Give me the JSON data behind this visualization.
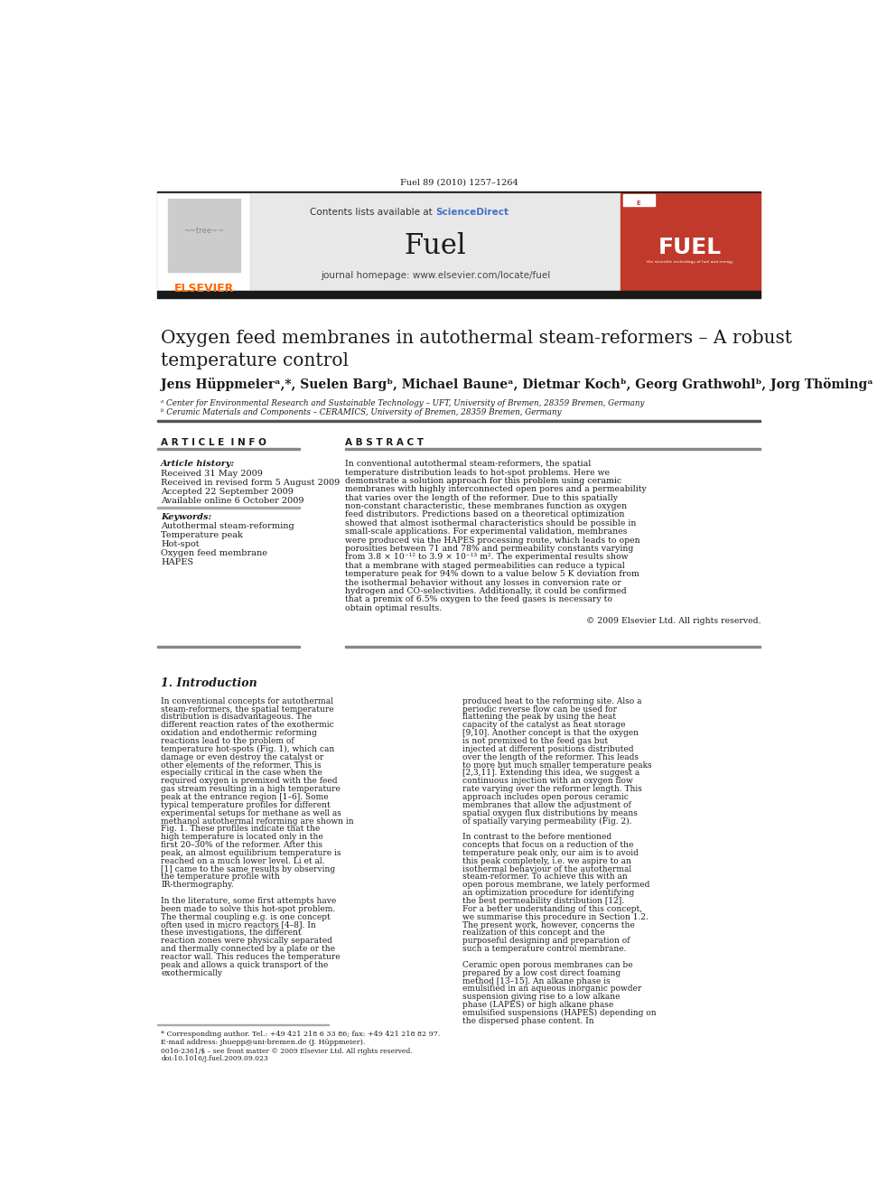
{
  "page_width": 9.92,
  "page_height": 13.23,
  "bg_color": "#ffffff",
  "journal_ref": "Fuel 89 (2010) 1257–1264",
  "header_bg": "#e8e8e8",
  "sciencedirect_color": "#4472c4",
  "journal_title": "Fuel",
  "journal_homepage": "journal homepage: www.elsevier.com/locate/fuel",
  "paper_title_line1": "Oxygen feed membranes in autothermal steam-reformers – A robust",
  "paper_title_line2": "temperature control",
  "authors": "Jens Hüppmeierᵃ,*, Suelen Bargᵇ, Michael Bauneᵃ, Dietmar Kochᵇ, Georg Grathwohlᵇ, Jorg Thömingᵃ",
  "affil_a": "ᵃ Center for Environmental Research and Sustainable Technology – UFT, University of Bremen, 28359 Bremen, Germany",
  "affil_b": "ᵇ Ceramic Materials and Components – CERAMICS, University of Bremen, 28359 Bremen, Germany",
  "article_info_title": "A R T I C L E  I N F O",
  "abstract_title": "A B S T R A C T",
  "article_history_label": "Article history:",
  "received": "Received 31 May 2009",
  "revised": "Received in revised form 5 August 2009",
  "accepted": "Accepted 22 September 2009",
  "available": "Available online 6 October 2009",
  "keywords_label": "Keywords:",
  "keywords": [
    "Autothermal steam-reforming",
    "Temperature peak",
    "Hot-spot",
    "Oxygen feed membrane",
    "HAPES"
  ],
  "abstract_text": "In conventional autothermal steam-reformers, the spatial temperature distribution leads to hot-spot problems. Here we demonstrate a solution approach for this problem using ceramic membranes with highly interconnected open pores and a permeability that varies over the length of the reformer. Due to this spatially non-constant characteristic, these membranes function as oxygen feed distributors. Predictions based on a theoretical optimization showed that almost isothermal characteristics should be possible in small-scale applications. For experimental validation, membranes were produced via the HAPES processing route, which leads to open porosities between 71 and 78% and permeability constants varying from 3.8 × 10⁻¹² to 3.9 × 10⁻¹³ m². The experimental results show that a membrane with staged permeabilities can reduce a typical temperature peak for 94% down to a value below 5 K deviation from the isothermal behavior without any losses in conversion rate or hydrogen and CO-selectivities. Additionally, it could be confirmed that a premix of 6.5% oxygen to the feed gases is necessary to obtain optimal results.",
  "copyright": "© 2009 Elsevier Ltd. All rights reserved.",
  "intro_title": "1. Introduction",
  "intro_col1": "In conventional concepts for autothermal steam-reformers, the spatial temperature distribution is disadvantageous. The different reaction rates of the exothermic oxidation and endothermic reforming reactions lead to the problem of temperature hot-spots (Fig. 1), which can damage or even destroy the catalyst or other elements of the reformer. This is especially critical in the case when the required oxygen is premixed with the feed gas stream resulting in a high temperature peak at the entrance region [1–6]. Some typical temperature profiles for different experimental setups for methane as well as methanol autothermal reforming are shown in Fig. 1. These profiles indicate that the high temperature is located only in the first 20–30% of the reformer. After this peak, an almost equilibrium temperature is reached on a much lower level. Li et al. [1] came to the same results by observing the temperature profile with IR-thermography.\n    In the literature, some first attempts have been made to solve this hot-spot problem. The thermal coupling e.g. is one concept often used in micro reactors [4–8]. In these investigations, the different reaction zones were physically separated and thermally connected by a plate or the reactor wall. This reduces the temperature peak and allows a quick transport of the exothermically",
  "intro_col2": "produced heat to the reforming site. Also a periodic reverse flow can be used for flattening the peak by using the heat capacity of the catalyst as heat storage [9,10]. Another concept is that the oxygen is not premixed to the feed gas but injected at different positions distributed over the length of the reformer. This leads to more but much smaller temperature peaks [2,3,11]. Extending this idea, we suggest a continuous injection with an oxygen flow rate varying over the reformer length. This approach includes open porous ceramic membranes that allow the adjustment of spatial oxygen flux distributions by means of spatially varying permeability (Fig. 2).\n    In contrast to the before mentioned concepts that focus on a reduction of the temperature peak only, our aim is to avoid this peak completely, i.e. we aspire to an isothermal behaviour of the autothermal steam-reformer. To achieve this with an open porous membrane, we lately performed an optimization procedure for identifying the best permeability distribution [12]. For a better understanding of this concept, we summarise this procedure in Section 1.2. The present work, however, concerns the realization of this concept and the purposeful designing and preparation of such a temperature control membrane.\n    Ceramic open porous membranes can be prepared by a low cost direct foaming method [13–15]. An alkane phase is emulsified in an aqueous inorganic powder suspension giving rise to a low alkane phase (LAPES) or high alkane phase emulsified suspensions (HAPES) depending on the dispersed phase content. In",
  "footnote_star": "* Corresponding author. Tel.: +49 421 218 6 33 86; fax: +49 421 218 82 97.",
  "footnote_email": "E-mail address: jhuepp@uni-bremen.de (J. Hüppmeier).",
  "issn": "0016-2361/$ – see front matter © 2009 Elsevier Ltd. All rights reserved.",
  "doi": "doi:10.1016/j.fuel.2009.09.023",
  "elsevier_color": "#ff6600",
  "fuel_cover_color": "#c0392b"
}
